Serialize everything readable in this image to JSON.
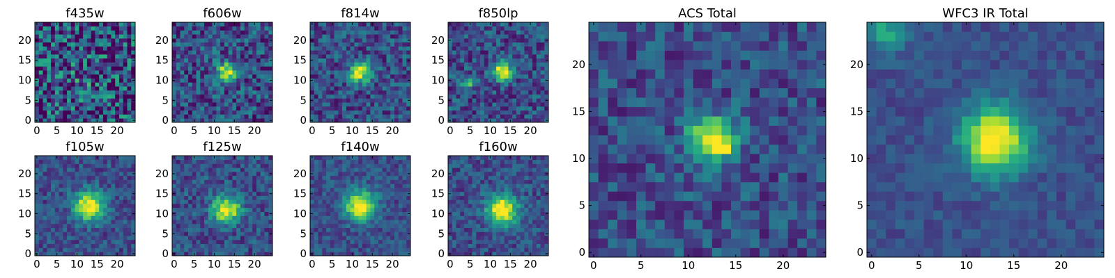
{
  "chart_data": [
    {
      "type": "heatmap",
      "title": "f435w",
      "grid_size": 25,
      "xlim": [
        0,
        24
      ],
      "ylim": [
        0,
        24
      ],
      "xticks": [
        0,
        5,
        10,
        15,
        20
      ],
      "yticks": [
        0,
        5,
        10,
        15,
        20
      ],
      "colormap": "viridis",
      "noise": 0.55,
      "peaks": [
        {
          "x": 12,
          "y": 11,
          "amp": 0.15,
          "width": 2.5
        }
      ]
    },
    {
      "type": "heatmap",
      "title": "f606w",
      "grid_size": 25,
      "xlim": [
        0,
        24
      ],
      "ylim": [
        0,
        24
      ],
      "xticks": [
        0,
        5,
        10,
        15,
        20
      ],
      "yticks": [
        0,
        5,
        10,
        15,
        20
      ],
      "colormap": "viridis",
      "noise": 0.35,
      "peaks": [
        {
          "x": 13,
          "y": 12,
          "amp": 0.75,
          "width": 1.6
        }
      ]
    },
    {
      "type": "heatmap",
      "title": "f814w",
      "grid_size": 25,
      "xlim": [
        0,
        24
      ],
      "ylim": [
        0,
        24
      ],
      "xticks": [
        0,
        5,
        10,
        15,
        20
      ],
      "yticks": [
        0,
        5,
        10,
        15,
        20
      ],
      "colormap": "viridis",
      "noise": 0.3,
      "peaks": [
        {
          "x": 12,
          "y": 12,
          "amp": 0.75,
          "width": 1.8
        }
      ]
    },
    {
      "type": "heatmap",
      "title": "f850lp",
      "grid_size": 25,
      "xlim": [
        0,
        24
      ],
      "ylim": [
        0,
        24
      ],
      "xticks": [
        0,
        5,
        10,
        15,
        20
      ],
      "yticks": [
        0,
        5,
        10,
        15,
        20
      ],
      "colormap": "viridis",
      "noise": 0.3,
      "peaks": [
        {
          "x": 13,
          "y": 12,
          "amp": 0.8,
          "width": 1.6
        },
        {
          "x": 4,
          "y": 9,
          "amp": 0.55,
          "width": 1.0
        }
      ]
    },
    {
      "type": "heatmap",
      "title": "f105w",
      "grid_size": 25,
      "xlim": [
        0,
        24
      ],
      "ylim": [
        0,
        24
      ],
      "xticks": [
        0,
        5,
        10,
        15,
        20
      ],
      "yticks": [
        0,
        5,
        10,
        15,
        20
      ],
      "colormap": "viridis",
      "noise": 0.22,
      "peaks": [
        {
          "x": 13,
          "y": 12,
          "amp": 0.8,
          "width": 2.6
        }
      ]
    },
    {
      "type": "heatmap",
      "title": "f125w",
      "grid_size": 25,
      "xlim": [
        0,
        24
      ],
      "ylim": [
        0,
        24
      ],
      "xticks": [
        0,
        5,
        10,
        15,
        20
      ],
      "yticks": [
        0,
        5,
        10,
        15,
        20
      ],
      "colormap": "viridis",
      "noise": 0.25,
      "peaks": [
        {
          "x": 13,
          "y": 11,
          "amp": 0.8,
          "width": 2.4
        }
      ]
    },
    {
      "type": "heatmap",
      "title": "f140w",
      "grid_size": 25,
      "xlim": [
        0,
        24
      ],
      "ylim": [
        0,
        24
      ],
      "xticks": [
        0,
        5,
        10,
        15,
        20
      ],
      "yticks": [
        0,
        5,
        10,
        15,
        20
      ],
      "colormap": "viridis",
      "noise": 0.2,
      "peaks": [
        {
          "x": 12,
          "y": 12,
          "amp": 0.8,
          "width": 2.6
        }
      ]
    },
    {
      "type": "heatmap",
      "title": "f160w",
      "grid_size": 25,
      "xlim": [
        0,
        24
      ],
      "ylim": [
        0,
        24
      ],
      "xticks": [
        0,
        5,
        10,
        15,
        20
      ],
      "yticks": [
        0,
        5,
        10,
        15,
        20
      ],
      "colormap": "viridis",
      "noise": 0.22,
      "peaks": [
        {
          "x": 13,
          "y": 11,
          "amp": 0.85,
          "width": 2.6
        }
      ]
    },
    {
      "type": "heatmap",
      "title": "ACS Total",
      "grid_size": 25,
      "xlim": [
        0,
        24
      ],
      "ylim": [
        0,
        24
      ],
      "xticks": [
        0,
        5,
        10,
        15,
        20
      ],
      "yticks": [
        0,
        5,
        10,
        15,
        20
      ],
      "colormap": "viridis",
      "noise": 0.25,
      "peaks": [
        {
          "x": 12.5,
          "y": 12,
          "amp": 0.7,
          "width": 1.8
        },
        {
          "x": 14,
          "y": 11,
          "amp": 0.3,
          "width": 0.6
        }
      ]
    },
    {
      "type": "heatmap",
      "title": "WFC3 IR Total",
      "grid_size": 25,
      "xlim": [
        0,
        24
      ],
      "ylim": [
        0,
        24
      ],
      "xticks": [
        0,
        5,
        10,
        15,
        20
      ],
      "yticks": [
        0,
        5,
        10,
        15,
        20
      ],
      "colormap": "viridis",
      "noise": 0.12,
      "peaks": [
        {
          "x": 13,
          "y": 12,
          "amp": 0.85,
          "width": 2.4
        },
        {
          "x": 1.5,
          "y": 23.5,
          "amp": 0.35,
          "width": 1.5
        }
      ]
    }
  ]
}
